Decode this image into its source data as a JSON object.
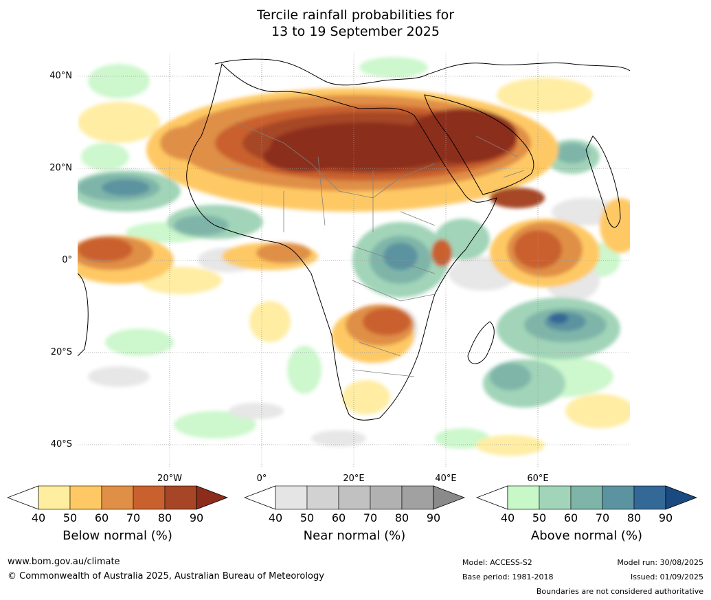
{
  "title": {
    "line1": "Tercile rainfall probabilities for",
    "line2": "13 to 19 September 2025"
  },
  "map": {
    "lat_labels": [
      "40°N",
      "20°N",
      "0°",
      "20°S",
      "40°S"
    ],
    "lon_labels": [
      "20°W",
      "0°",
      "20°E",
      "40°E",
      "60°E"
    ]
  },
  "colorbars": [
    {
      "title": "Below normal (%)",
      "ticks": [
        "40",
        "50",
        "60",
        "70",
        "80",
        "90"
      ],
      "colors": [
        "#ffffff",
        "#ffeda0",
        "#fec965",
        "#e08f46",
        "#c9612e",
        "#a64626",
        "#8c2d1c"
      ]
    },
    {
      "title": "Near normal (%)",
      "ticks": [
        "40",
        "50",
        "60",
        "70",
        "80",
        "90"
      ],
      "colors": [
        "#ffffff",
        "#e5e5e5",
        "#d2d2d2",
        "#c1c1c1",
        "#b1b1b1",
        "#a1a1a1",
        "#8a8a8a"
      ]
    },
    {
      "title": "Above normal (%)",
      "ticks": [
        "40",
        "50",
        "60",
        "70",
        "80",
        "90"
      ],
      "colors": [
        "#ffffff",
        "#c8f7c8",
        "#a1d4b8",
        "#7fb5a9",
        "#5c93a0",
        "#346896",
        "#1a4a80"
      ]
    }
  ],
  "footer": {
    "website": "www.bom.gov.au/climate",
    "copyright": "© Commonwealth of Australia 2025, Australian Bureau of Meteorology",
    "model": "Model: ACCESS-S2",
    "base_period": "Base period: 1981-2018",
    "model_run": "Model run: 30/08/2025",
    "issued": "Issued: 01/09/2025",
    "disclaimer": "Boundaries are not considered authoritative"
  },
  "colors": {
    "ocean_background": "#ffffff",
    "coastline": "#000000",
    "borders": "#808080",
    "gridlines": "#9a9a9a"
  }
}
